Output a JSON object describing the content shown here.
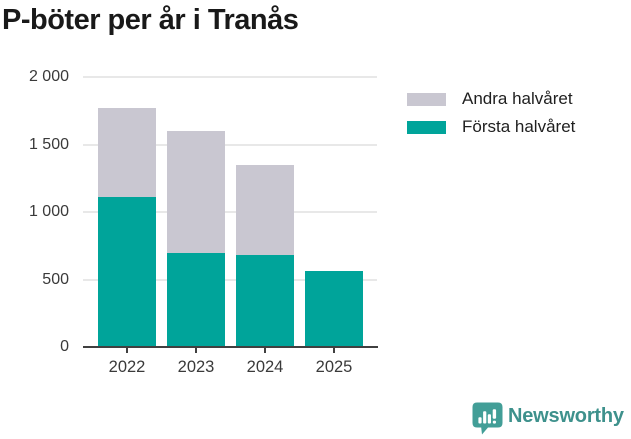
{
  "chart_data": {
    "type": "bar",
    "stacked": true,
    "title": "P-böter per år i Tranås",
    "categories": [
      "2022",
      "2023",
      "2024",
      "2025"
    ],
    "series": [
      {
        "name": "Första halvåret",
        "color": "#00a49a",
        "values": [
          1110,
          700,
          680,
          565
        ]
      },
      {
        "name": "Andra halvåret",
        "color": "#c9c7d1",
        "values": [
          660,
          900,
          665,
          0
        ]
      }
    ],
    "totals": [
      1770,
      1600,
      1345,
      565
    ],
    "xlabel": "",
    "ylabel": "",
    "ylim": [
      0,
      2000
    ],
    "yticks": [
      {
        "value": 0,
        "label": "0"
      },
      {
        "value": 500,
        "label": "500"
      },
      {
        "value": 1000,
        "label": "1 000"
      },
      {
        "value": 1500,
        "label": "1 500"
      },
      {
        "value": 2000,
        "label": "2 000"
      }
    ],
    "grid": true,
    "legend_position": "right"
  },
  "legend": {
    "items": [
      {
        "label": "Andra halvåret",
        "color": "#c9c7d1"
      },
      {
        "label": "Första halvåret",
        "color": "#00a49a"
      }
    ]
  },
  "footer": {
    "brand": "Newsworthy",
    "brand_color": "#3e918c",
    "icon_color": "#429e97"
  },
  "colors": {
    "first_half": "#00a49a",
    "second_half": "#c9c7d1",
    "gridline": "#e8e8e8",
    "axis": "#404040",
    "axis_text": "#3a3a3a",
    "title_text": "#191919"
  }
}
